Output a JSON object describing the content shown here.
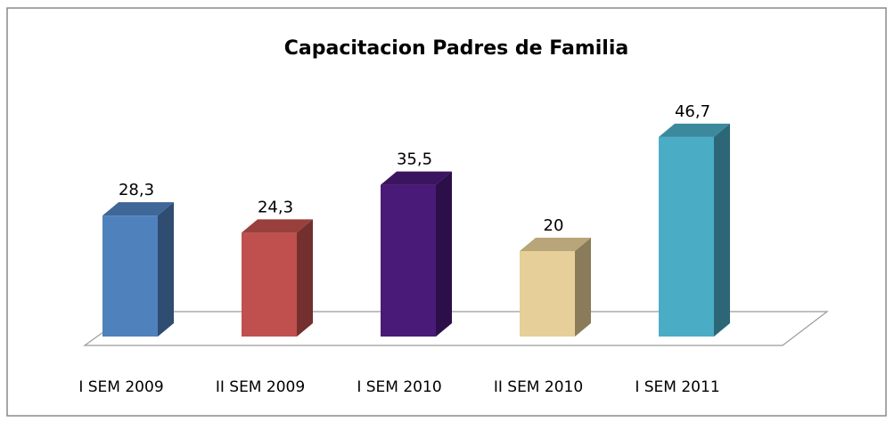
{
  "chart_data": {
    "type": "bar3d",
    "title": "Capacitacion Padres de Familia",
    "categories": [
      "I SEM 2009",
      "II SEM 2009",
      "I SEM 2010",
      "II SEM 2010",
      "I SEM 2011"
    ],
    "values": [
      28.3,
      24.3,
      35.5,
      20,
      46.7
    ],
    "value_labels": [
      "28,3",
      "24,3",
      "35,5",
      "20",
      "46,7"
    ],
    "colors": [
      "#4f81bd",
      "#c0504d",
      "#4a1a78",
      "#e6cf98",
      "#4bacc6"
    ]
  }
}
